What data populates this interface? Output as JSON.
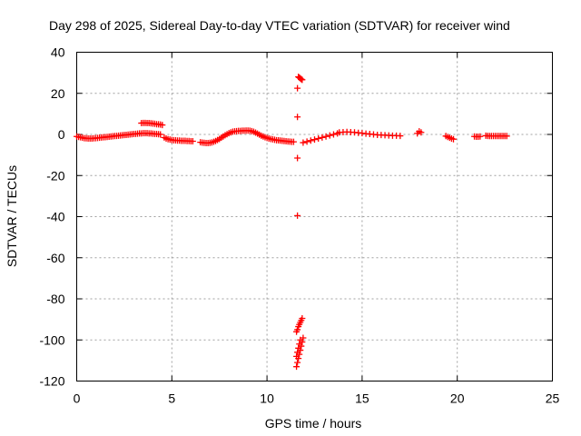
{
  "chart_data": {
    "type": "scatter",
    "title": "Day 298 of 2025, Sidereal Day-to-day VTEC variation (SDTVAR) for receiver wind",
    "xlabel": "GPS time / hours",
    "ylabel": "SDTVAR / TECUs",
    "xlim": [
      0,
      25
    ],
    "ylim": [
      -120,
      40
    ],
    "xticks": [
      0,
      5,
      10,
      15,
      20,
      25
    ],
    "yticks": [
      -120,
      -100,
      -80,
      -60,
      -40,
      -20,
      0,
      20,
      40
    ],
    "grid": true,
    "marker": "+",
    "color": "#ff0000",
    "series": [
      {
        "name": "SDTVAR",
        "points": [
          [
            0.0,
            -1.0
          ],
          [
            0.1,
            -1.2
          ],
          [
            0.2,
            -1.4
          ],
          [
            0.3,
            -1.6
          ],
          [
            0.4,
            -1.8
          ],
          [
            0.5,
            -1.9
          ],
          [
            0.6,
            -2.0
          ],
          [
            0.7,
            -2.0
          ],
          [
            0.8,
            -2.0
          ],
          [
            0.9,
            -1.9
          ],
          [
            1.0,
            -1.8
          ],
          [
            1.1,
            -1.7
          ],
          [
            1.2,
            -1.6
          ],
          [
            1.3,
            -1.5
          ],
          [
            1.4,
            -1.4
          ],
          [
            1.5,
            -1.3
          ],
          [
            1.6,
            -1.2
          ],
          [
            1.7,
            -1.1
          ],
          [
            1.8,
            -1.0
          ],
          [
            1.9,
            -0.9
          ],
          [
            2.0,
            -0.8
          ],
          [
            2.1,
            -0.7
          ],
          [
            2.2,
            -0.6
          ],
          [
            2.3,
            -0.5
          ],
          [
            2.4,
            -0.4
          ],
          [
            2.5,
            -0.3
          ],
          [
            2.6,
            -0.2
          ],
          [
            2.7,
            -0.1
          ],
          [
            2.8,
            0.0
          ],
          [
            2.9,
            0.1
          ],
          [
            3.0,
            0.2
          ],
          [
            3.1,
            0.3
          ],
          [
            3.2,
            0.4
          ],
          [
            3.3,
            0.5
          ],
          [
            3.4,
            0.5
          ],
          [
            3.5,
            0.6
          ],
          [
            3.6,
            0.6
          ],
          [
            3.7,
            0.6
          ],
          [
            3.8,
            0.5
          ],
          [
            3.9,
            0.5
          ],
          [
            4.0,
            0.4
          ],
          [
            4.1,
            0.3
          ],
          [
            4.2,
            0.2
          ],
          [
            4.3,
            0.1
          ],
          [
            4.4,
            0.0
          ],
          [
            3.4,
            5.5
          ],
          [
            3.5,
            5.6
          ],
          [
            3.6,
            5.6
          ],
          [
            3.7,
            5.5
          ],
          [
            3.8,
            5.5
          ],
          [
            3.9,
            5.4
          ],
          [
            4.0,
            5.3
          ],
          [
            4.1,
            5.2
          ],
          [
            4.2,
            5.0
          ],
          [
            4.3,
            4.9
          ],
          [
            4.4,
            4.8
          ],
          [
            4.5,
            4.6
          ],
          [
            4.6,
            -1.5
          ],
          [
            4.7,
            -2.0
          ],
          [
            4.8,
            -2.3
          ],
          [
            4.9,
            -2.5
          ],
          [
            5.0,
            -2.7
          ],
          [
            5.1,
            -2.8
          ],
          [
            5.2,
            -2.9
          ],
          [
            5.3,
            -3.0
          ],
          [
            5.4,
            -3.0
          ],
          [
            5.5,
            -3.1
          ],
          [
            5.6,
            -3.1
          ],
          [
            5.7,
            -3.1
          ],
          [
            5.8,
            -3.2
          ],
          [
            5.9,
            -3.2
          ],
          [
            6.0,
            -3.3
          ],
          [
            6.1,
            -3.3
          ],
          [
            6.5,
            -3.8
          ],
          [
            6.6,
            -4.0
          ],
          [
            6.7,
            -4.1
          ],
          [
            6.8,
            -4.2
          ],
          [
            6.9,
            -4.2
          ],
          [
            7.0,
            -4.1
          ],
          [
            7.1,
            -3.9
          ],
          [
            7.2,
            -3.6
          ],
          [
            7.3,
            -3.2
          ],
          [
            7.4,
            -2.7
          ],
          [
            7.5,
            -2.2
          ],
          [
            7.6,
            -1.6
          ],
          [
            7.7,
            -1.0
          ],
          [
            7.8,
            -0.4
          ],
          [
            7.9,
            0.1
          ],
          [
            8.0,
            0.6
          ],
          [
            8.1,
            1.0
          ],
          [
            8.2,
            1.3
          ],
          [
            8.3,
            1.5
          ],
          [
            8.4,
            1.6
          ],
          [
            8.5,
            1.7
          ],
          [
            8.6,
            1.7
          ],
          [
            8.7,
            1.8
          ],
          [
            8.8,
            1.8
          ],
          [
            8.9,
            1.9
          ],
          [
            9.0,
            1.9
          ],
          [
            9.1,
            1.8
          ],
          [
            9.2,
            1.6
          ],
          [
            9.3,
            1.3
          ],
          [
            9.4,
            0.9
          ],
          [
            9.5,
            0.4
          ],
          [
            9.6,
            -0.1
          ],
          [
            9.7,
            -0.6
          ],
          [
            9.8,
            -1.0
          ],
          [
            9.9,
            -1.4
          ],
          [
            10.0,
            -1.7
          ],
          [
            10.1,
            -2.0
          ],
          [
            10.2,
            -2.2
          ],
          [
            10.3,
            -2.4
          ],
          [
            10.4,
            -2.6
          ],
          [
            10.5,
            -2.8
          ],
          [
            10.6,
            -2.9
          ],
          [
            10.7,
            -3.0
          ],
          [
            10.8,
            -3.1
          ],
          [
            10.9,
            -3.2
          ],
          [
            11.0,
            -3.3
          ],
          [
            11.1,
            -3.4
          ],
          [
            11.2,
            -3.5
          ],
          [
            11.3,
            -3.6
          ],
          [
            11.4,
            -3.6
          ],
          [
            11.6,
            22.5
          ],
          [
            11.6,
            8.5
          ],
          [
            11.6,
            -11.5
          ],
          [
            11.6,
            -39.5
          ],
          [
            11.65,
            28.0
          ],
          [
            11.7,
            27.7
          ],
          [
            11.75,
            27.3
          ],
          [
            11.8,
            26.9
          ],
          [
            11.85,
            26.6
          ],
          [
            11.9,
            -4.0
          ],
          [
            12.1,
            -3.5
          ],
          [
            12.3,
            -3.0
          ],
          [
            12.5,
            -2.5
          ],
          [
            12.7,
            -2.0
          ],
          [
            12.9,
            -1.5
          ],
          [
            13.1,
            -1.0
          ],
          [
            13.3,
            -0.5
          ],
          [
            13.5,
            0.0
          ],
          [
            13.7,
            0.5
          ],
          [
            13.8,
            1.0
          ],
          [
            14.0,
            1.1
          ],
          [
            14.2,
            1.2
          ],
          [
            14.4,
            1.1
          ],
          [
            14.6,
            1.0
          ],
          [
            14.8,
            0.8
          ],
          [
            15.0,
            0.6
          ],
          [
            15.2,
            0.4
          ],
          [
            15.4,
            0.2
          ],
          [
            15.6,
            0.0
          ],
          [
            15.8,
            -0.2
          ],
          [
            16.0,
            -0.3
          ],
          [
            16.2,
            -0.4
          ],
          [
            16.4,
            -0.5
          ],
          [
            16.6,
            -0.6
          ],
          [
            16.8,
            -0.6
          ],
          [
            17.0,
            -0.7
          ],
          [
            17.9,
            0.5
          ],
          [
            18.0,
            1.5
          ],
          [
            18.1,
            1.0
          ],
          [
            19.4,
            -0.8
          ],
          [
            19.5,
            -1.2
          ],
          [
            19.6,
            -1.6
          ],
          [
            19.7,
            -2.0
          ],
          [
            19.8,
            -2.3
          ],
          [
            20.9,
            -1.0
          ],
          [
            21.0,
            -1.1
          ],
          [
            21.1,
            -1.1
          ],
          [
            21.2,
            -1.0
          ],
          [
            21.5,
            -0.6
          ],
          [
            21.6,
            -0.7
          ],
          [
            21.7,
            -0.8
          ],
          [
            21.8,
            -0.8
          ],
          [
            21.9,
            -0.8
          ],
          [
            22.0,
            -0.8
          ],
          [
            22.1,
            -0.8
          ],
          [
            22.2,
            -0.8
          ],
          [
            22.3,
            -0.8
          ],
          [
            22.4,
            -0.8
          ],
          [
            22.5,
            -0.8
          ],
          [
            22.6,
            -0.8
          ],
          [
            11.55,
            -113.0
          ],
          [
            11.6,
            -111.0
          ],
          [
            11.65,
            -109.0
          ],
          [
            11.7,
            -107.0
          ],
          [
            11.75,
            -105.0
          ],
          [
            11.8,
            -103.0
          ],
          [
            11.85,
            -101.0
          ],
          [
            11.9,
            -99.0
          ],
          [
            11.55,
            -108.0
          ],
          [
            11.6,
            -106.0
          ],
          [
            11.65,
            -104.0
          ],
          [
            11.7,
            -102.0
          ],
          [
            11.75,
            -100.0
          ],
          [
            11.55,
            -96.0
          ],
          [
            11.6,
            -95.0
          ],
          [
            11.65,
            -93.5
          ],
          [
            11.7,
            -92.5
          ],
          [
            11.75,
            -91.5
          ],
          [
            11.8,
            -90.5
          ],
          [
            11.85,
            -89.5
          ]
        ]
      }
    ]
  }
}
